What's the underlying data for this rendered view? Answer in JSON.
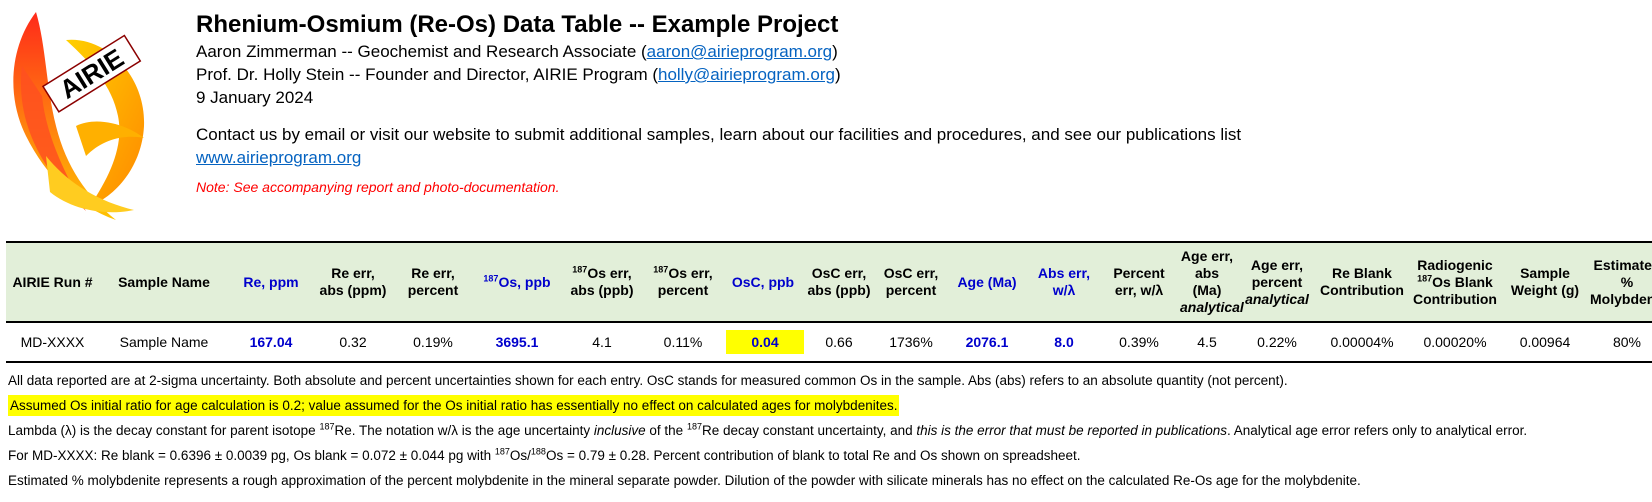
{
  "logo": {
    "icon": "phoenix-logo-icon",
    "text": "AIRIE"
  },
  "header": {
    "title": "Rhenium-Osmium (Re-Os) Data Table -- Example Project",
    "person1": {
      "prefix": "Aaron Zimmerman -- Geochemist and Research Associate (",
      "email": "aaron@airieprogram.org",
      "suffix": ")"
    },
    "person2": {
      "prefix": "Prof. Dr. Holly Stein -- Founder and Director, AIRIE Program (",
      "email": "holly@airieprogram.org",
      "suffix": ")"
    },
    "date": "9 January 2024",
    "contact": "Contact us by email or visit our website to submit additional samples, learn about our facilities and procedures, and see our publications list",
    "website": "www.airieprogram.org",
    "note": "Note: See accompanying report and photo-documentation."
  },
  "table": {
    "headers": {
      "run": "AIRIE Run #",
      "sample": "Sample Name",
      "re_ppm": "Re, ppm",
      "re_err_abs_l1": "Re err,",
      "re_err_abs_l2": "abs (ppm)",
      "re_err_pct_l1": "Re err,",
      "re_err_pct_l2": "percent",
      "os_ppb_sup": "187",
      "os_ppb": "Os, ppb",
      "os_err_abs_sup": "187",
      "os_err_abs_l1": "Os err,",
      "os_err_abs_l2": "abs (ppb)",
      "os_err_pct_sup": "187",
      "os_err_pct_l1": "Os err,",
      "os_err_pct_l2": "percent",
      "osc_ppb": "OsC, ppb",
      "osc_err_abs_l1": "OsC err,",
      "osc_err_abs_l2": "abs (ppb)",
      "osc_err_pct_l1": "OsC err,",
      "osc_err_pct_l2": "percent",
      "age": "Age (Ma)",
      "abs_err_l1": "Abs err,",
      "abs_err_l2": "w/λ",
      "pct_err_l1": "Percent",
      "pct_err_l2": "err, w/λ",
      "age_err_abs_l1": "Age err,",
      "age_err_abs_l2": "abs (Ma)",
      "age_err_abs_l3": "analytical",
      "age_err_pct_l1": "Age err,",
      "age_err_pct_l2": "percent",
      "age_err_pct_l3": "analytical",
      "re_blank_l1": "Re Blank",
      "re_blank_l2": "Contribution",
      "os_blank_l1": "Radiogenic",
      "os_blank_sup": "187",
      "os_blank_l2": "Os Blank",
      "os_blank_l3": "Contribution",
      "weight_l1": "Sample",
      "weight_l2": "Weight (g)",
      "moly_l1": "Estimated %",
      "moly_l2": "Molybdenite"
    },
    "row": {
      "run": "MD-XXXX",
      "sample": "Sample Name",
      "re_ppm": "167.04",
      "re_err_abs": "0.32",
      "re_err_pct": "0.19%",
      "os_ppb": "3695.1",
      "os_err_abs": "4.1",
      "os_err_pct": "0.11%",
      "osc_ppb": "0.04",
      "osc_err_abs": "0.66",
      "osc_err_pct": "1736%",
      "age": "2076.1",
      "abs_err": "8.0",
      "pct_err": "0.39%",
      "age_err_abs": "4.5",
      "age_err_pct": "0.22%",
      "re_blank": "0.00004%",
      "os_blank": "0.00020%",
      "weight": "0.00964",
      "moly": "80%"
    }
  },
  "notes": {
    "n1": "All data reported are at 2-sigma uncertainty.  Both absolute and percent uncertainties shown for each entry.  OsC stands for measured common Os in the sample.  Abs (abs) refers to an absolute quantity (not percent).",
    "n2": "Assumed Os initial ratio for age calculation is 0.2; value assumed for the Os initial ratio has essentially no effect on calculated ages for molybdenites.",
    "n3": {
      "a": "Lambda (λ) is the decay constant for parent isotope ",
      "sup1": "187",
      "b": "Re.  The notation w/λ is the age uncertainty ",
      "c": "inclusive",
      "d": " of the ",
      "sup2": "187",
      "e": "Re decay constant uncertainty, and ",
      "f": "this is the error that must be reported in publications",
      "g": ".  Analytical age error refers only to analytical error."
    },
    "n4": {
      "a": "For MD-XXXX: Re blank = 0.6396 ± 0.0039 pg, Os blank = 0.072 ± 0.044 pg with ",
      "sup1": "187",
      "b": "Os/",
      "sup2": "188",
      "c": "Os = 0.79 ± 0.28.  Percent contribution of blank to total Re and Os shown on spreadsheet."
    },
    "n5": "Estimated % molybdenite represents a rough approximation of the percent molybdenite in the mineral separate powder.  Dilution of the powder with silicate minerals has no effect on the calculated Re-Os age for the molybdenite."
  },
  "colors": {
    "header_bg": "#e2efd9",
    "highlight": "#ffff00",
    "blue_text": "#0000cc",
    "link": "#0563c1",
    "note_red": "#ff0000"
  }
}
